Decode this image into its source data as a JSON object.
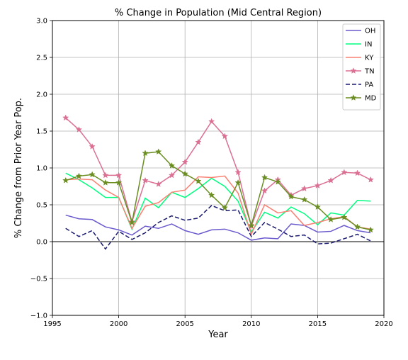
{
  "chart_data": {
    "type": "line",
    "title": "% Change in Population (Mid Central Region)",
    "xlabel": "Year",
    "ylabel": "% Change from Prior Year Pop.",
    "xlim": [
      1995,
      2020
    ],
    "ylim": [
      -1.0,
      3.0
    ],
    "xticks": [
      1995,
      2000,
      2005,
      2010,
      2015,
      2020
    ],
    "xtick_labels": [
      "1995",
      "2000",
      "2005",
      "2010",
      "2015",
      "2020"
    ],
    "yticks": [
      -1.0,
      -0.5,
      0.0,
      0.5,
      1.0,
      1.5,
      2.0,
      2.5,
      3.0
    ],
    "ytick_labels": [
      "−1.0",
      "−0.5",
      "0.0",
      "0.5",
      "1.0",
      "1.5",
      "2.0",
      "2.5",
      "3.0"
    ],
    "grid": true,
    "legend_position": "top-right",
    "reference_line_y": 0,
    "x": [
      1996,
      1997,
      1998,
      1999,
      2000,
      2001,
      2002,
      2003,
      2004,
      2005,
      2006,
      2007,
      2008,
      2009,
      2010,
      2011,
      2012,
      2013,
      2014,
      2015,
      2016,
      2017,
      2018,
      2019
    ],
    "series": [
      {
        "name": "OH",
        "color": "#6a5acd",
        "dash": "solid",
        "marker": "none",
        "values": [
          0.36,
          0.31,
          0.3,
          0.2,
          0.16,
          0.09,
          0.21,
          0.18,
          0.24,
          0.15,
          0.1,
          0.16,
          0.17,
          0.12,
          0.02,
          0.05,
          0.04,
          0.24,
          0.22,
          0.13,
          0.14,
          0.22,
          0.15,
          0.12
        ]
      },
      {
        "name": "IN",
        "color": "#00ff7f",
        "dash": "solid",
        "marker": "none",
        "values": [
          0.93,
          0.84,
          0.73,
          0.6,
          0.6,
          0.17,
          0.59,
          0.46,
          0.67,
          0.6,
          0.72,
          0.86,
          0.75,
          0.55,
          0.13,
          0.4,
          0.32,
          0.47,
          0.38,
          0.23,
          0.39,
          0.36,
          0.56,
          0.55
        ]
      },
      {
        "name": "KY",
        "color": "#fa8072",
        "dash": "solid",
        "marker": "none",
        "values": [
          0.84,
          0.85,
          0.84,
          0.7,
          0.6,
          0.18,
          0.48,
          0.53,
          0.67,
          0.7,
          0.88,
          0.87,
          0.89,
          0.66,
          0.1,
          0.5,
          0.39,
          0.42,
          0.22,
          0.26,
          0.31,
          0.34,
          0.2,
          0.17
        ]
      },
      {
        "name": "TN",
        "color": "#db7093",
        "dash": "solid",
        "marker": "star",
        "values": [
          1.68,
          1.52,
          1.29,
          0.9,
          0.9,
          0.27,
          0.83,
          0.78,
          0.9,
          1.08,
          1.35,
          1.63,
          1.43,
          0.94,
          0.21,
          0.69,
          0.84,
          0.63,
          0.72,
          0.76,
          0.83,
          0.94,
          0.93,
          0.84
        ]
      },
      {
        "name": "PA",
        "color": "#191970",
        "dash": "dashed",
        "marker": "none",
        "values": [
          0.18,
          0.07,
          0.15,
          -0.1,
          0.14,
          0.03,
          0.12,
          0.26,
          0.35,
          0.29,
          0.32,
          0.49,
          0.42,
          0.43,
          0.07,
          0.26,
          0.17,
          0.07,
          0.09,
          -0.03,
          -0.02,
          0.04,
          0.1,
          0.01
        ]
      },
      {
        "name": "MD",
        "color": "#6b8e23",
        "dash": "solid",
        "marker": "star",
        "values": [
          0.83,
          0.89,
          0.91,
          0.8,
          0.8,
          0.26,
          1.2,
          1.22,
          1.03,
          0.92,
          0.82,
          0.63,
          0.46,
          0.8,
          0.22,
          0.87,
          0.81,
          0.61,
          0.57,
          0.47,
          0.3,
          0.33,
          0.2,
          0.16
        ]
      }
    ]
  }
}
